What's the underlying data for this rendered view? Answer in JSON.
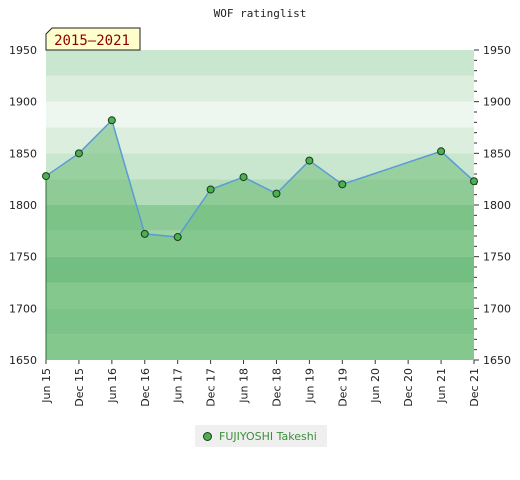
{
  "chart_data": {
    "type": "area",
    "title": "WOF ratinglist",
    "period_badge": "2015–2021",
    "x": [
      "Jun 15",
      "Dec 15",
      "Jun 16",
      "Dec 16",
      "Jun 17",
      "Dec 17",
      "Jun 18",
      "Dec 18",
      "Jun 19",
      "Dec 19",
      "Jun 20",
      "Dec 20",
      "Jun 21",
      "Dec 21"
    ],
    "series": [
      {
        "name": "FUJIYOSHI Takeshi",
        "values": [
          1828,
          1850,
          1882,
          1772,
          1769,
          1815,
          1827,
          1811,
          1843,
          1820,
          null,
          null,
          1852,
          1823
        ]
      }
    ],
    "ylim": [
      1650,
      1950
    ],
    "yticks": [
      1650,
      1700,
      1750,
      1800,
      1850,
      1900,
      1950
    ],
    "colors": {
      "line": "#5b9bd5",
      "area": "#6fbe7a",
      "marker": "#4caf50",
      "badge_bg": "#ffffcc",
      "badge_text": "#8b0000"
    },
    "legend": {
      "position": "bottom-center"
    },
    "grid": true
  }
}
